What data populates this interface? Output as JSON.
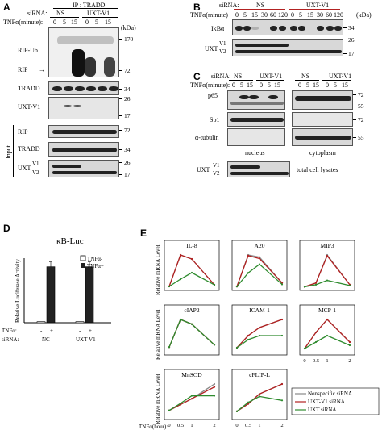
{
  "panel_letters": [
    "A",
    "B",
    "C",
    "D",
    "E"
  ],
  "A": {
    "sirna_label": "siRNA:",
    "ip_label": "IP : TRADD",
    "groups": [
      "NS",
      "UXT-V1"
    ],
    "tnf_label": "TNFα(minute):",
    "timepoints": [
      "0",
      "5",
      "15",
      "0",
      "5",
      "15"
    ],
    "kda_unit": "(kDa)",
    "rows": [
      "RIP-Ub",
      "RIP",
      "TRADD",
      "UXT-V1",
      "RIP",
      "TRADD",
      "UXT"
    ],
    "uxt_variants": [
      "V1",
      "V2"
    ],
    "input_label": "Input",
    "mw": [
      "170",
      "72",
      "34",
      "26",
      "17",
      "72",
      "34",
      "26",
      "17"
    ]
  },
  "B": {
    "sirna_label": "siRNA:",
    "groups": [
      "NS",
      "UXT-V1"
    ],
    "tnf_label": "TNFα(minute)",
    "timepoints": [
      "0",
      "5",
      "15",
      "30",
      "60",
      "120",
      "0",
      "5",
      "15",
      "30",
      "60",
      "120"
    ],
    "kda_unit": "(kDa)",
    "rows": [
      "IκBα",
      "UXT"
    ],
    "uxt_variants": [
      "V1",
      "V2"
    ],
    "mw": [
      "34",
      "26",
      "17"
    ]
  },
  "C": {
    "sirna_label": "siRNA:",
    "groups": [
      "NS",
      "UXT-V1",
      "NS",
      "UXT-V1"
    ],
    "tnf_label": "TNFα(minute):",
    "timepoints": [
      "0",
      "5",
      "15",
      "0",
      "5",
      "15",
      "0",
      "5",
      "15",
      "0",
      "5",
      "15"
    ],
    "rows": [
      "p65",
      "Sp1",
      "α-tubulin",
      "UXT"
    ],
    "uxt_variants": [
      "V1",
      "V2"
    ],
    "fraction_labels": [
      "nucleus",
      "cytoplasm",
      "total cell lysates"
    ],
    "mw": [
      "72",
      "55",
      "72",
      "55"
    ]
  },
  "D": {
    "title": "κB-Luc",
    "ylabel": "Relative Luciferase Activity",
    "tnf_row_label": "TNFα:",
    "sirna_row_label": "siRNA:",
    "tnf_signs": [
      "-",
      "+",
      "-",
      "+"
    ],
    "groups": [
      "NC",
      "UXT-V1"
    ],
    "legend": [
      "TNFα-",
      "TNFα+"
    ],
    "colors": {
      "minus": "#ffffff",
      "plus": "#222222"
    }
  },
  "E": {
    "ylabel": "Relative mRNA Level",
    "xlabel_row": "TNFα(hour):",
    "legend": [
      "Nonspecific siRNA",
      "UXT-V1 siRNA",
      "UXT siRNA"
    ],
    "colors": {
      "ns": "#888888",
      "uxtv1": "#b22222",
      "uxt": "#2e8b2e"
    }
  },
  "chart_data": [
    {
      "type": "bar",
      "title": "κB-Luc",
      "ylabel": "Relative Luciferase Activity",
      "categories": [
        "NC",
        "UXT-V1"
      ],
      "series": [
        {
          "name": "TNFα-",
          "values": [
            1,
            1
          ]
        },
        {
          "name": "TNFα+",
          "values": [
            52,
            52
          ]
        }
      ],
      "ylim": [
        0,
        60
      ]
    },
    {
      "type": "line",
      "title": "IL-8",
      "x": [
        0,
        0.5,
        1,
        2
      ],
      "series": [
        {
          "name": "Nonspecific siRNA",
          "values": [
            1,
            40,
            35,
            3
          ]
        },
        {
          "name": "UXT-V1 siRNA",
          "values": [
            1,
            40,
            35,
            3
          ]
        },
        {
          "name": "UXT siRNA",
          "values": [
            1,
            10,
            18,
            3
          ]
        }
      ]
    },
    {
      "type": "line",
      "title": "A20",
      "x": [
        0,
        0.5,
        1,
        2
      ],
      "series": [
        {
          "name": "Nonspecific siRNA",
          "values": [
            1,
            45,
            42,
            6
          ]
        },
        {
          "name": "UXT-V1 siRNA",
          "values": [
            1,
            44,
            40,
            6
          ]
        },
        {
          "name": "UXT siRNA",
          "values": [
            1,
            20,
            32,
            4
          ]
        }
      ]
    },
    {
      "type": "line",
      "title": "MIP3",
      "x": [
        0,
        0.5,
        1,
        2
      ],
      "series": [
        {
          "name": "Nonspecific siRNA",
          "values": [
            0.5,
            5,
            38,
            3
          ]
        },
        {
          "name": "UXT-V1 siRNA",
          "values": [
            0.5,
            5,
            37,
            3
          ]
        },
        {
          "name": "UXT siRNA",
          "values": [
            0.5,
            3,
            8,
            2
          ]
        }
      ]
    },
    {
      "type": "line",
      "title": "cIAP2",
      "x": [
        0,
        0.5,
        1,
        2
      ],
      "series": [
        {
          "name": "Nonspecific siRNA",
          "values": [
            1,
            7,
            6,
            1.5
          ]
        },
        {
          "name": "UXT-V1 siRNA",
          "values": [
            1,
            7,
            6,
            1.5
          ]
        },
        {
          "name": "UXT siRNA",
          "values": [
            1,
            7,
            6,
            1.5
          ]
        }
      ]
    },
    {
      "type": "line",
      "title": "ICAM-1",
      "x": [
        0,
        0.5,
        1,
        2
      ],
      "series": [
        {
          "name": "Nonspecific siRNA",
          "values": [
            1,
            4,
            6,
            8
          ]
        },
        {
          "name": "UXT-V1 siRNA",
          "values": [
            1,
            4,
            6,
            8
          ]
        },
        {
          "name": "UXT siRNA",
          "values": [
            1,
            3,
            4,
            4
          ]
        }
      ]
    },
    {
      "type": "line",
      "title": "MCP-1",
      "x": [
        0,
        0.5,
        1,
        2
      ],
      "series": [
        {
          "name": "Nonspecific siRNA",
          "values": [
            1,
            6,
            10,
            3
          ]
        },
        {
          "name": "UXT-V1 siRNA",
          "values": [
            1,
            6,
            10,
            3
          ]
        },
        {
          "name": "UXT siRNA",
          "values": [
            1,
            3,
            5,
            2
          ]
        }
      ]
    },
    {
      "type": "line",
      "title": "MnSOD",
      "x": [
        0,
        0.5,
        1,
        2
      ],
      "series": [
        {
          "name": "Nonspecific siRNA",
          "values": [
            1,
            2,
            3,
            5.5
          ]
        },
        {
          "name": "UXT-V1 siRNA",
          "values": [
            1,
            2,
            3,
            5
          ]
        },
        {
          "name": "UXT siRNA",
          "values": [
            1,
            2.2,
            3.5,
            3.5
          ]
        }
      ]
    },
    {
      "type": "line",
      "title": "cFLIP-L",
      "x": [
        0,
        0.5,
        1,
        2
      ],
      "series": [
        {
          "name": "Nonspecific siRNA",
          "values": [
            1,
            2.5,
            4.5,
            6.5
          ]
        },
        {
          "name": "UXT-V1 siRNA",
          "values": [
            1,
            2.5,
            4.5,
            6.5
          ]
        },
        {
          "name": "UXT siRNA",
          "values": [
            1,
            2.8,
            4,
            3.2
          ]
        }
      ]
    }
  ]
}
